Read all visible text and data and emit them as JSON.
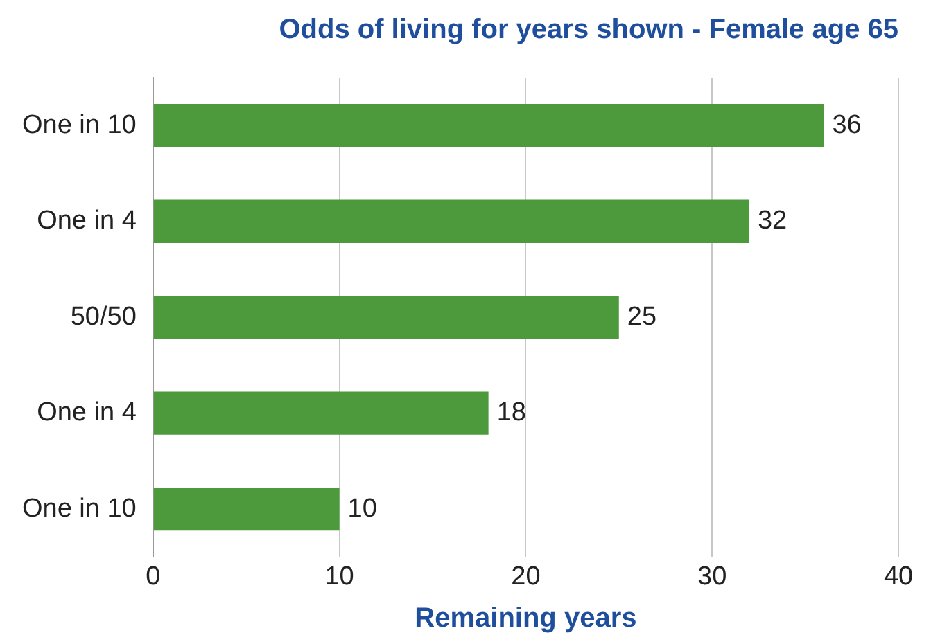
{
  "chart_data": {
    "type": "bar",
    "orientation": "horizontal",
    "title": "Odds of living for years shown - Female age 65",
    "xlabel": "Remaining years",
    "categories": [
      "One in 10",
      "One in 4",
      "50/50",
      "One in 4",
      "One in 10"
    ],
    "values": [
      36,
      32,
      25,
      18,
      10
    ],
    "color": "#4c9a3c",
    "xlim": [
      0,
      40
    ],
    "xticks": [
      0,
      10,
      20,
      30,
      40
    ],
    "grid": "x",
    "data_labels": true,
    "legend": false
  }
}
